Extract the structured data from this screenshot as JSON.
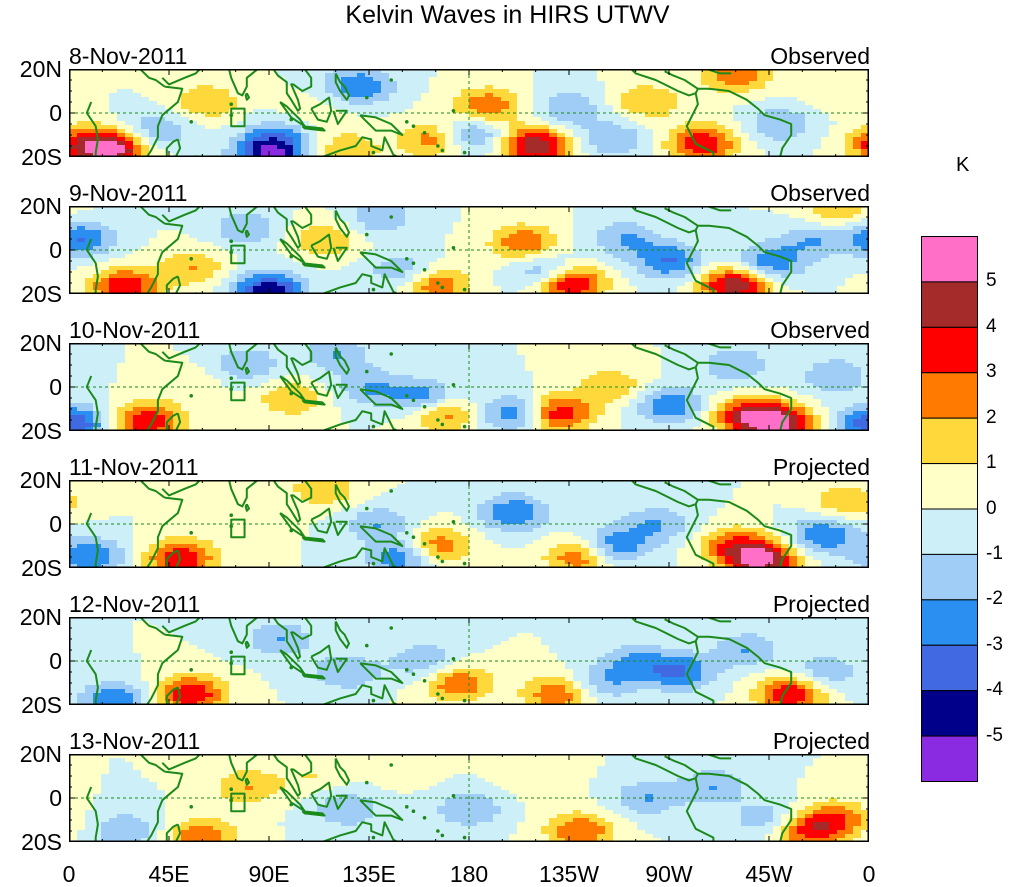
{
  "title": "Kelvin Waves in HIRS UTWV",
  "lat_labels": [
    "20N",
    "0",
    "20S"
  ],
  "lon_labels": [
    "0",
    "45E",
    "90E",
    "135E",
    "180",
    "135W",
    "90W",
    "45W",
    "0"
  ],
  "colorbar": {
    "unit": "K",
    "labels": [
      "5",
      "4",
      "3",
      "2",
      "1",
      "0",
      "-1",
      "-2",
      "-3",
      "-4",
      "-5"
    ],
    "colors": [
      "#ff6ec7",
      "#a52a2a",
      "#ff0000",
      "#ff7a00",
      "#ffd93b",
      "#ffffc8",
      "#cdeff8",
      "#9fcdf6",
      "#2b8ff2",
      "#4169e1",
      "#00008b",
      "#8a2be2"
    ]
  },
  "panels": [
    {
      "date": "8-Nov-2011",
      "kind": "Observed"
    },
    {
      "date": "9-Nov-2011",
      "kind": "Observed"
    },
    {
      "date": "10-Nov-2011",
      "kind": "Observed"
    },
    {
      "date": "11-Nov-2011",
      "kind": "Projected"
    },
    {
      "date": "12-Nov-2011",
      "kind": "Projected"
    },
    {
      "date": "13-Nov-2011",
      "kind": "Projected"
    }
  ],
  "anomaly_centers": [
    [
      [
        20,
        -17,
        5
      ],
      [
        5,
        -14,
        3
      ],
      [
        40,
        -8,
        -2
      ],
      [
        62,
        5,
        2
      ],
      [
        90,
        -19,
        -5
      ],
      [
        95,
        -10,
        -2
      ],
      [
        130,
        12,
        -3
      ],
      [
        125,
        -17,
        2
      ],
      [
        165,
        -12,
        3
      ],
      [
        188,
        3,
        3
      ],
      [
        210,
        -15,
        5
      ],
      [
        180,
        -10,
        -3
      ],
      [
        225,
        2,
        -2
      ],
      [
        245,
        -12,
        -2
      ],
      [
        260,
        5,
        2
      ],
      [
        285,
        -14,
        4
      ],
      [
        300,
        18,
        3
      ],
      [
        320,
        -5,
        -2
      ],
      [
        345,
        10,
        1
      ],
      [
        110,
        0,
        1
      ]
    ],
    [
      [
        25,
        -17,
        4
      ],
      [
        5,
        5,
        -3
      ],
      [
        55,
        -8,
        2
      ],
      [
        80,
        10,
        -2
      ],
      [
        90,
        -19,
        -5
      ],
      [
        115,
        5,
        2
      ],
      [
        140,
        15,
        -2
      ],
      [
        150,
        -10,
        -2
      ],
      [
        165,
        -16,
        3
      ],
      [
        205,
        3,
        3
      ],
      [
        215,
        -10,
        -3
      ],
      [
        225,
        -15,
        5
      ],
      [
        250,
        5,
        -2
      ],
      [
        270,
        -5,
        -3
      ],
      [
        300,
        -16,
        5
      ],
      [
        315,
        -6,
        -3
      ],
      [
        335,
        5,
        -2
      ],
      [
        345,
        18,
        2
      ]
    ],
    [
      [
        2,
        -17,
        -4
      ],
      [
        35,
        -16,
        4
      ],
      [
        55,
        0,
        1
      ],
      [
        80,
        10,
        -2
      ],
      [
        100,
        -5,
        2
      ],
      [
        120,
        15,
        -2
      ],
      [
        135,
        0,
        -2
      ],
      [
        160,
        -5,
        -3
      ],
      [
        168,
        -12,
        3
      ],
      [
        200,
        -12,
        -3
      ],
      [
        220,
        -12,
        4
      ],
      [
        245,
        0,
        2
      ],
      [
        270,
        -8,
        -3
      ],
      [
        305,
        -13,
        4
      ],
      [
        320,
        -17,
        5
      ],
      [
        345,
        5,
        -2
      ],
      [
        300,
        10,
        -2
      ]
    ],
    [
      [
        10,
        -15,
        -3
      ],
      [
        50,
        -16,
        4
      ],
      [
        75,
        0,
        1
      ],
      [
        115,
        16,
        2
      ],
      [
        140,
        0,
        -2
      ],
      [
        165,
        -10,
        3
      ],
      [
        150,
        -15,
        -3
      ],
      [
        200,
        5,
        -3
      ],
      [
        230,
        -15,
        3
      ],
      [
        245,
        -10,
        -3
      ],
      [
        265,
        0,
        -2
      ],
      [
        300,
        -10,
        3
      ],
      [
        312,
        -17,
        5
      ],
      [
        340,
        -5,
        -3
      ],
      [
        350,
        10,
        2
      ]
    ],
    [
      [
        20,
        -18,
        -3
      ],
      [
        55,
        -15,
        4
      ],
      [
        95,
        10,
        -2
      ],
      [
        125,
        -5,
        -2
      ],
      [
        160,
        0,
        -2
      ],
      [
        175,
        -10,
        3
      ],
      [
        220,
        -15,
        3
      ],
      [
        240,
        -10,
        -2
      ],
      [
        255,
        0,
        -2
      ],
      [
        275,
        -5,
        -3
      ],
      [
        305,
        5,
        -2
      ],
      [
        325,
        -15,
        4
      ],
      [
        340,
        -5,
        -2
      ]
    ],
    [
      [
        25,
        -15,
        -2
      ],
      [
        60,
        -18,
        3
      ],
      [
        80,
        5,
        2
      ],
      [
        110,
        10,
        1
      ],
      [
        125,
        -5,
        -2
      ],
      [
        150,
        15,
        1
      ],
      [
        180,
        -5,
        -2
      ],
      [
        210,
        10,
        1
      ],
      [
        230,
        -15,
        3
      ],
      [
        260,
        0,
        -2
      ],
      [
        290,
        5,
        -2
      ],
      [
        315,
        -10,
        -2
      ],
      [
        330,
        -15,
        3
      ],
      [
        345,
        -10,
        3
      ]
    ]
  ]
}
